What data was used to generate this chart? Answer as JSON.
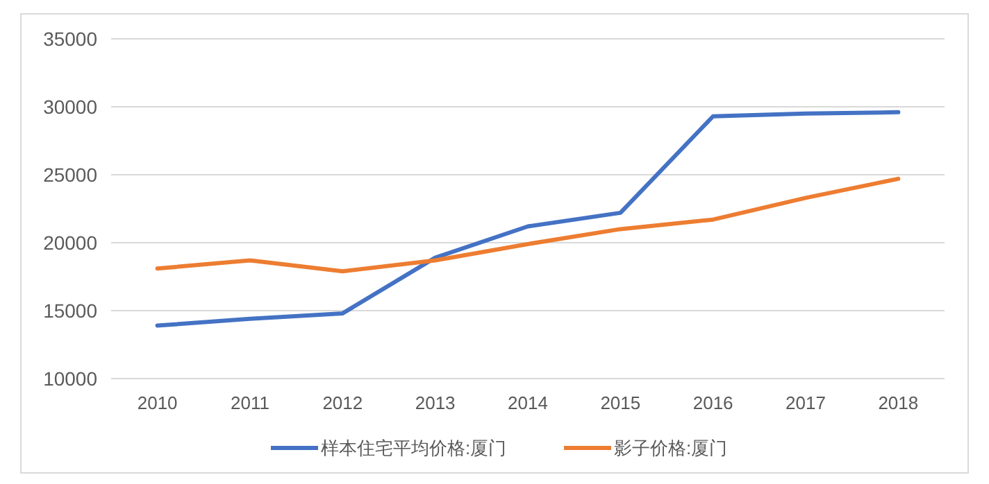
{
  "chart_data": {
    "type": "line",
    "categories": [
      "2010",
      "2011",
      "2012",
      "2013",
      "2014",
      "2015",
      "2016",
      "2017",
      "2018"
    ],
    "series": [
      {
        "name": "样本住宅平均价格:厦门",
        "color": "#4472c4",
        "values": [
          13900,
          14400,
          14800,
          18900,
          21200,
          22200,
          29300,
          29500,
          29600
        ]
      },
      {
        "name": "影子价格:厦门",
        "color": "#ed7d31",
        "values": [
          18100,
          18700,
          17900,
          18700,
          19900,
          21000,
          21700,
          23300,
          24700
        ]
      }
    ],
    "ylim": [
      10000,
      35000
    ],
    "yticks": [
      10000,
      15000,
      20000,
      25000,
      30000,
      35000
    ],
    "grid": "y",
    "legend": "bottom",
    "marker": "none",
    "line_style": "solid"
  }
}
